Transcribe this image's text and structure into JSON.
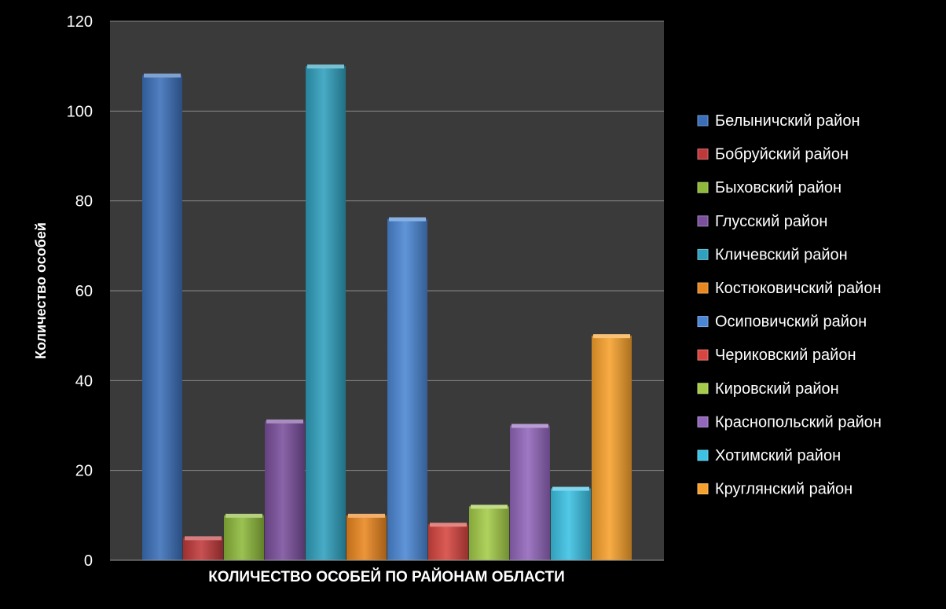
{
  "chart_data": {
    "type": "bar",
    "title": "",
    "xlabel": "КОЛИЧЕСТВО ОСОБЕЙ ПО РАЙОНАМ ОБЛАСТИ",
    "ylabel": "Количество особей",
    "ylim": [
      0,
      120
    ],
    "yticks": [
      0,
      20,
      40,
      60,
      80,
      100,
      120
    ],
    "grid": true,
    "legend_position": "right",
    "background_color": "#000000",
    "plot_area_color": "#3a3a3a",
    "series": [
      {
        "name": "Белыничский район",
        "value": 108,
        "color": "#3a6fb8"
      },
      {
        "name": "Бобруйский район",
        "value": 5,
        "color": "#c0393a"
      },
      {
        "name": "Быховский район",
        "value": 10,
        "color": "#8db83a"
      },
      {
        "name": "Глусский район",
        "value": 31,
        "color": "#7a4f9c"
      },
      {
        "name": "Кличевский район",
        "value": 110,
        "color": "#2fa0bd"
      },
      {
        "name": "Костюковичский район",
        "value": 10,
        "color": "#e9861f"
      },
      {
        "name": "Осиповичский район",
        "value": 76,
        "color": "#4a86d4"
      },
      {
        "name": "Чериковский район",
        "value": 8,
        "color": "#d6453f"
      },
      {
        "name": "Кировский район",
        "value": 12,
        "color": "#a4cc48"
      },
      {
        "name": "Краснопольский район",
        "value": 30,
        "color": "#9266bb"
      },
      {
        "name": "Хотимский район",
        "value": 16,
        "color": "#3cc2e4"
      },
      {
        "name": "Круглянский район",
        "value": 50,
        "color": "#f7a12c"
      }
    ]
  }
}
